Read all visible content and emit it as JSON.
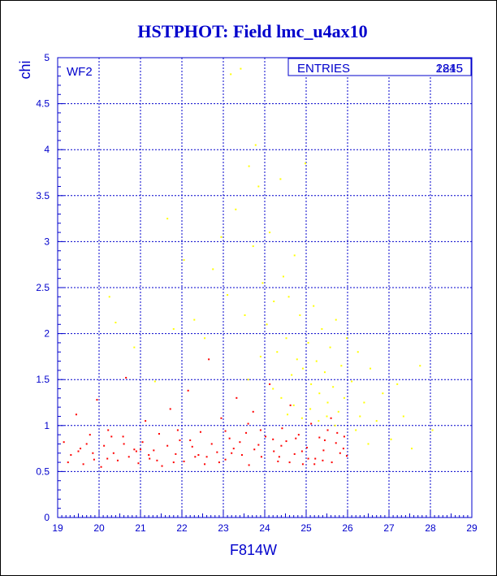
{
  "colors": {
    "primary": "#0000cc",
    "grid": "#0000cc",
    "series_red": "#ff0000",
    "series_yellow": "#ffff00",
    "frame": "#000000"
  },
  "chart_data": {
    "type": "scatter",
    "title": "HSTPHOT: Field lmc_u4ax10",
    "xlabel": "F814W",
    "ylabel": "chi",
    "xlim": [
      19,
      29
    ],
    "ylim": [
      0,
      5
    ],
    "x_ticks": [
      "19",
      "20",
      "21",
      "22",
      "23",
      "24",
      "25",
      "26",
      "27",
      "28",
      "29"
    ],
    "y_ticks": [
      "0",
      "0.5",
      "1",
      "1.5",
      "2",
      "2.5",
      "3",
      "3.5",
      "4",
      "4.5",
      "5"
    ],
    "grid": true,
    "panel_label": "WF2",
    "stats_box": {
      "label": "ENTRIES",
      "values": [
        "2845",
        "1215"
      ]
    },
    "series": [
      {
        "color": "#ff0000",
        "values": [
          [
            19.15,
            0.82
          ],
          [
            19.32,
            0.68
          ],
          [
            19.45,
            1.12
          ],
          [
            19.55,
            0.75
          ],
          [
            19.62,
            0.58
          ],
          [
            19.78,
            0.9
          ],
          [
            19.88,
            0.63
          ],
          [
            19.95,
            1.28
          ],
          [
            20.05,
            0.55
          ],
          [
            20.12,
            0.78
          ],
          [
            20.22,
            0.95
          ],
          [
            20.35,
            0.7
          ],
          [
            20.45,
            0.62
          ],
          [
            20.58,
            0.88
          ],
          [
            20.65,
            1.52
          ],
          [
            20.72,
            0.66
          ],
          [
            20.85,
            0.74
          ],
          [
            20.95,
            0.59
          ],
          [
            21.05,
            0.82
          ],
          [
            21.12,
            1.05
          ],
          [
            21.22,
            0.64
          ],
          [
            21.32,
            0.73
          ],
          [
            21.45,
            0.91
          ],
          [
            21.52,
            0.56
          ],
          [
            21.65,
            0.78
          ],
          [
            21.72,
            1.18
          ],
          [
            21.85,
            0.69
          ],
          [
            21.95,
            0.84
          ],
          [
            22.05,
            0.61
          ],
          [
            22.15,
            1.38
          ],
          [
            22.25,
            0.77
          ],
          [
            22.32,
            0.66
          ],
          [
            22.45,
            0.93
          ],
          [
            22.55,
            0.58
          ],
          [
            22.65,
            1.72
          ],
          [
            22.72,
            0.8
          ],
          [
            22.85,
            0.71
          ],
          [
            22.95,
            1.08
          ],
          [
            23.05,
            0.63
          ],
          [
            23.15,
            0.86
          ],
          [
            23.25,
            0.75
          ],
          [
            23.32,
            1.3
          ],
          [
            23.45,
            0.68
          ],
          [
            23.55,
            0.92
          ],
          [
            23.62,
            0.57
          ],
          [
            23.72,
            1.15
          ],
          [
            23.85,
            0.79
          ],
          [
            23.92,
            0.66
          ],
          [
            24.02,
            0.88
          ],
          [
            24.12,
            1.45
          ],
          [
            24.22,
            0.72
          ],
          [
            24.32,
            0.61
          ],
          [
            24.42,
            0.97
          ],
          [
            24.52,
            0.83
          ],
          [
            24.62,
            1.22
          ],
          [
            24.72,
            0.69
          ],
          [
            24.82,
            0.9
          ],
          [
            24.92,
            0.58
          ],
          [
            25.02,
            0.76
          ],
          [
            25.12,
            1.02
          ],
          [
            25.22,
            0.64
          ],
          [
            25.32,
            0.87
          ],
          [
            25.42,
            0.73
          ],
          [
            25.52,
            0.95
          ],
          [
            25.62,
            0.6
          ],
          [
            25.72,
            0.81
          ],
          [
            25.82,
            0.7
          ],
          [
            25.92,
            0.88
          ],
          [
            25.98,
            0.67
          ],
          [
            19.25,
            0.6
          ],
          [
            19.7,
            0.8
          ],
          [
            20.3,
            0.88
          ],
          [
            20.9,
            0.72
          ],
          [
            21.4,
            0.62
          ],
          [
            21.9,
            0.95
          ],
          [
            22.4,
            0.68
          ],
          [
            22.9,
            0.6
          ],
          [
            23.4,
            0.82
          ],
          [
            23.9,
            0.95
          ],
          [
            24.4,
            0.78
          ],
          [
            24.9,
            0.72
          ],
          [
            25.4,
            0.62
          ],
          [
            25.9,
            0.75
          ],
          [
            23.6,
            1.02
          ],
          [
            24.6,
            0.6
          ],
          [
            25.6,
            1.08
          ],
          [
            25.2,
            0.58
          ],
          [
            24.2,
            0.85
          ],
          [
            23.2,
            0.7
          ],
          [
            22.2,
            0.84
          ],
          [
            21.2,
            0.68
          ],
          [
            20.2,
            0.64
          ],
          [
            19.5,
            0.72
          ],
          [
            25.75,
            0.92
          ],
          [
            25.45,
            0.84
          ],
          [
            25.05,
            0.64
          ],
          [
            24.75,
            0.86
          ],
          [
            24.35,
            0.66
          ],
          [
            23.75,
            0.74
          ],
          [
            23.05,
            0.94
          ],
          [
            22.6,
            0.66
          ],
          [
            21.8,
            0.6
          ],
          [
            21.0,
            0.74
          ],
          [
            20.6,
            0.8
          ],
          [
            19.85,
            0.7
          ]
        ]
      },
      {
        "color": "#ffff00",
        "values": [
          [
            20.25,
            2.4
          ],
          [
            20.4,
            2.12
          ],
          [
            20.85,
            1.85
          ],
          [
            21.35,
            1.48
          ],
          [
            21.65,
            3.25
          ],
          [
            21.8,
            2.05
          ],
          [
            22.05,
            2.8
          ],
          [
            22.3,
            2.15
          ],
          [
            22.55,
            1.95
          ],
          [
            22.75,
            2.7
          ],
          [
            22.95,
            3.05
          ],
          [
            23.1,
            2.42
          ],
          [
            23.18,
            4.82
          ],
          [
            23.3,
            3.35
          ],
          [
            23.42,
            4.88
          ],
          [
            23.52,
            2.2
          ],
          [
            23.62,
            3.82
          ],
          [
            23.72,
            2.95
          ],
          [
            23.78,
            4.05
          ],
          [
            23.85,
            3.6
          ],
          [
            23.95,
            2.55
          ],
          [
            24.05,
            2.1
          ],
          [
            24.12,
            3.1
          ],
          [
            24.22,
            2.35
          ],
          [
            24.3,
            1.8
          ],
          [
            24.38,
            3.68
          ],
          [
            24.45,
            2.62
          ],
          [
            24.52,
            1.95
          ],
          [
            24.58,
            2.4
          ],
          [
            24.65,
            1.55
          ],
          [
            24.72,
            2.85
          ],
          [
            24.78,
            1.72
          ],
          [
            24.85,
            2.2
          ],
          [
            24.92,
            1.62
          ],
          [
            24.98,
            3.85
          ],
          [
            25.05,
            1.9
          ],
          [
            25.12,
            1.45
          ],
          [
            25.18,
            2.3
          ],
          [
            25.25,
            1.7
          ],
          [
            25.32,
            1.35
          ],
          [
            25.38,
            2.05
          ],
          [
            25.45,
            1.58
          ],
          [
            25.52,
            1.25
          ],
          [
            25.58,
            1.85
          ],
          [
            25.65,
            1.42
          ],
          [
            25.72,
            2.15
          ],
          [
            25.78,
            1.15
          ],
          [
            25.85,
            1.65
          ],
          [
            25.92,
            1.3
          ],
          [
            25.98,
            1.95
          ],
          [
            26.1,
            1.48
          ],
          [
            26.25,
            1.8
          ],
          [
            26.4,
            1.25
          ],
          [
            26.55,
            1.62
          ],
          [
            26.7,
            1.05
          ],
          [
            26.85,
            1.35
          ],
          [
            27.05,
            0.85
          ],
          [
            27.2,
            1.45
          ],
          [
            27.35,
            1.1
          ],
          [
            27.55,
            0.75
          ],
          [
            27.75,
            1.65
          ],
          [
            28.05,
            0.95
          ],
          [
            24.4,
            1.3
          ],
          [
            24.55,
            1.12
          ],
          [
            24.7,
            1.22
          ],
          [
            24.9,
            1.08
          ],
          [
            25.1,
            1.18
          ],
          [
            25.3,
            1.05
          ],
          [
            25.5,
            1.1
          ],
          [
            25.7,
            1.0
          ],
          [
            23.9,
            1.75
          ],
          [
            24.2,
            1.4
          ],
          [
            23.6,
            1.5
          ],
          [
            26.2,
            0.95
          ],
          [
            26.5,
            0.8
          ],
          [
            26.3,
            1.1
          ]
        ]
      }
    ]
  }
}
